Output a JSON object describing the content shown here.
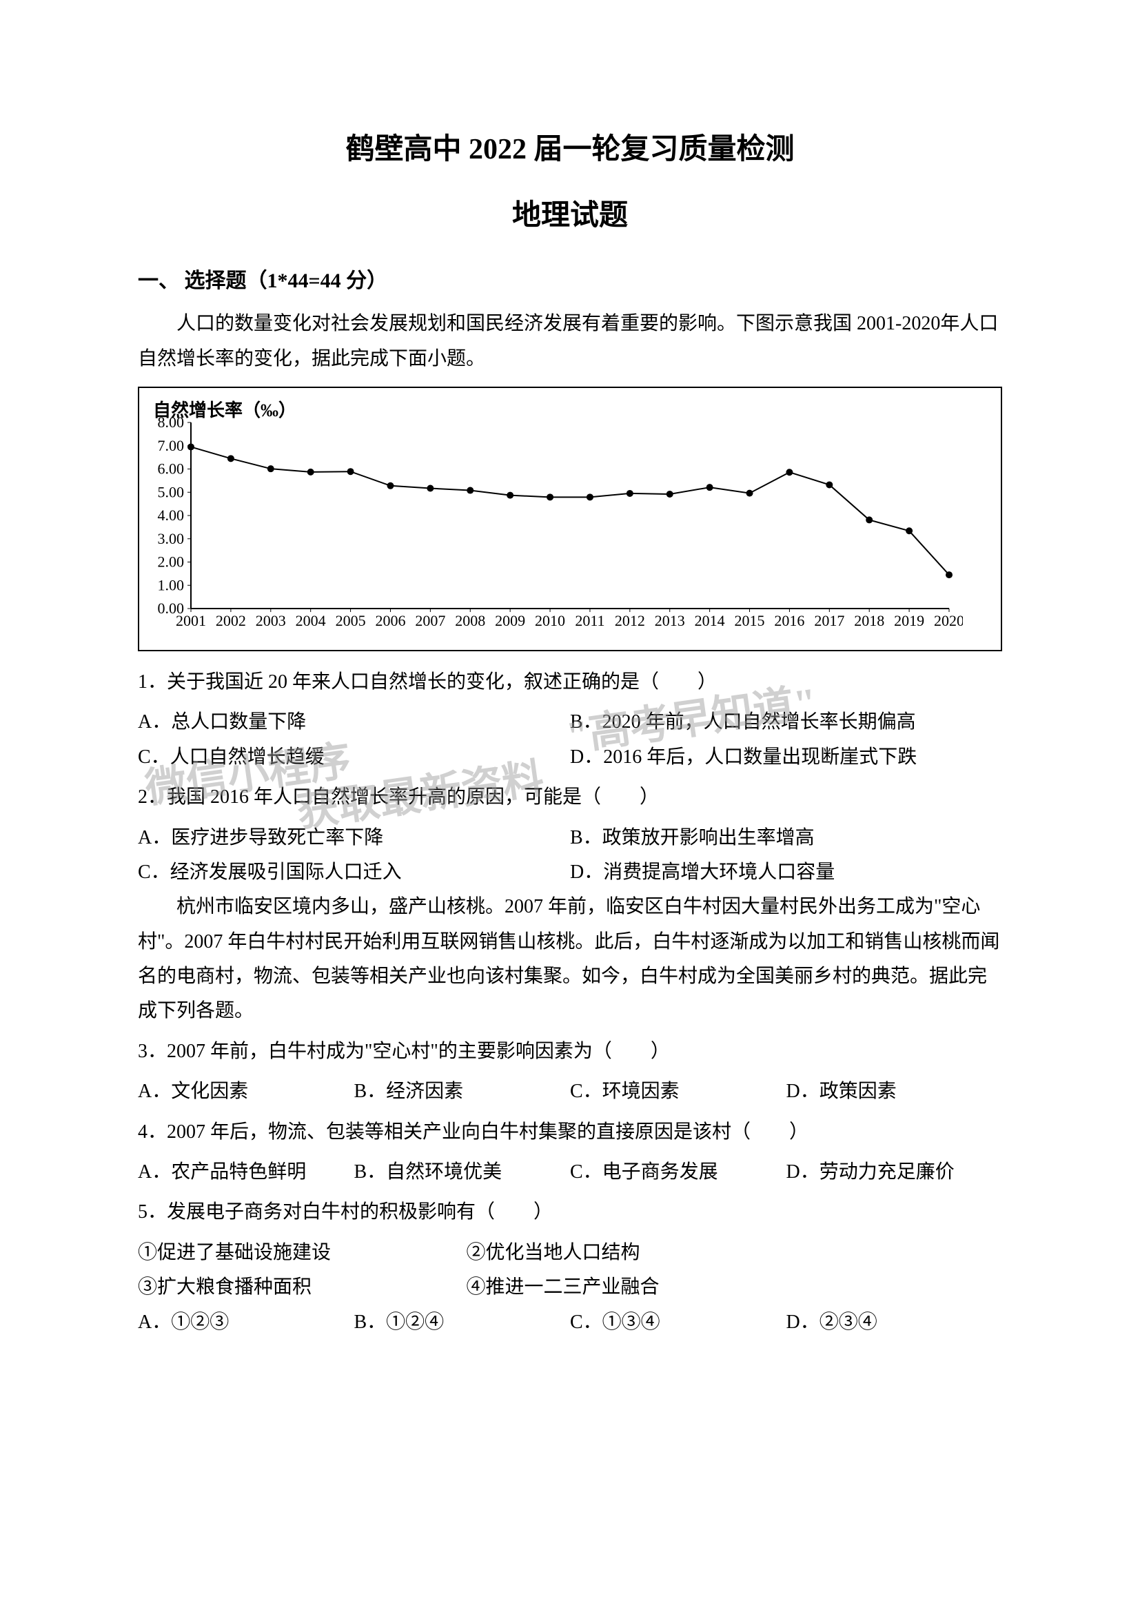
{
  "title": "鹤壁高中 2022 届一轮复习质量检测",
  "subtitle": "地理试题",
  "section_header": "一、 选择题（1*44=44 分）",
  "intro": "人口的数量变化对社会发展规划和国民经济发展有着重要的影响。下图示意我国 2001-2020年人口自然增长率的变化，据此完成下面小题。",
  "chart": {
    "type": "line",
    "ylabel": "自然增长率（‰）",
    "years": [
      2001,
      2002,
      2003,
      2004,
      2005,
      2006,
      2007,
      2008,
      2009,
      2010,
      2011,
      2012,
      2013,
      2014,
      2015,
      2016,
      2017,
      2018,
      2019,
      2020
    ],
    "values": [
      6.95,
      6.45,
      6.01,
      5.87,
      5.89,
      5.28,
      5.17,
      5.08,
      4.87,
      4.79,
      4.79,
      4.95,
      4.92,
      5.21,
      4.96,
      5.86,
      5.32,
      3.81,
      3.34,
      1.45
    ],
    "ylim": [
      0,
      8
    ],
    "ytick_step": 1,
    "line_color": "#000000",
    "marker_color": "#000000",
    "background_color": "#ffffff",
    "border_color": "#000000",
    "font_size_labels": 22,
    "marker_radius": 5,
    "line_width": 2
  },
  "q1": {
    "stem": "1．关于我国近 20 年来人口自然增长的变化，叙述正确的是（　　）",
    "A": "A．总人口数量下降",
    "B": "B．2020 年前，人口自然增长率长期偏高",
    "C": "C．人口自然增长趋缓",
    "D": "D．2016 年后，人口数量出现断崖式下跌"
  },
  "q2": {
    "stem": "2．我国 2016 年人口自然增长率升高的原因，可能是（　　）",
    "A": "A．医疗进步导致死亡率下降",
    "B": "B．政策放开影响出生率增高",
    "C": "C．经济发展吸引国际人口迁入",
    "D": "D．消费提高增大环境人口容量"
  },
  "passage2": "杭州市临安区境内多山，盛产山核桃。2007 年前，临安区白牛村因大量村民外出务工成为\"空心村\"。2007 年白牛村村民开始利用互联网销售山核桃。此后，白牛村逐渐成为以加工和销售山核桃而闻名的电商村，物流、包装等相关产业也向该村集聚。如今，白牛村成为全国美丽乡村的典范。据此完成下列各题。",
  "q3": {
    "stem": "3．2007 年前，白牛村成为\"空心村\"的主要影响因素为（　　）",
    "A": "A．文化因素",
    "B": "B．经济因素",
    "C": "C．环境因素",
    "D": "D．政策因素"
  },
  "q4": {
    "stem": "4．2007 年后，物流、包装等相关产业向白牛村集聚的直接原因是该村（　　）",
    "A": "A．农产品特色鲜明",
    "B": "B．自然环境优美",
    "C": "C．电子商务发展",
    "D": "D．劳动力充足廉价"
  },
  "q5": {
    "stem": "5．发展电子商务对白牛村的积极影响有（　　）",
    "s1": "①促进了基础设施建设",
    "s2": "②优化当地人口结构",
    "s3": "③扩大粮食播种面积",
    "s4": "④推进一二三产业融合",
    "A": "A．①②③",
    "B": "B．①②④",
    "C": "C．①③④",
    "D": "D．②③④"
  },
  "watermark": {
    "line1": "\"高考早知道\"",
    "line2": "微信小程序",
    "line3": "获取最新资料"
  }
}
